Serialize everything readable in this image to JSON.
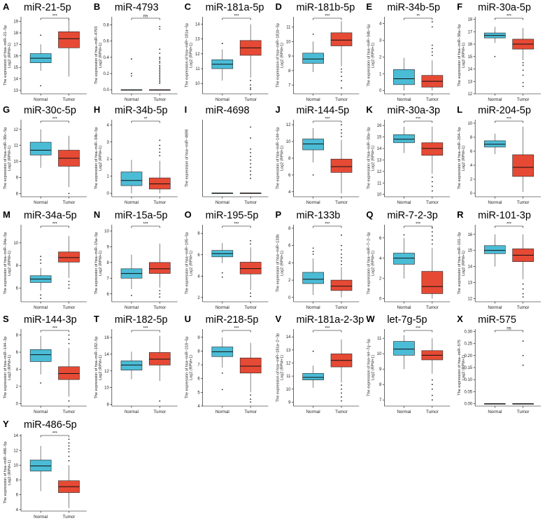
{
  "figure": {
    "x_categories": [
      "Normal",
      "Tumor"
    ],
    "colors": {
      "normal": "#4bbcd6",
      "tumor": "#e64a35"
    }
  },
  "chart_data": [
    {
      "type": "box",
      "letter": "A",
      "title": "miR-21-5p",
      "ylabel": "The expression of hsa−miR−21−5p",
      "ylabel2": "Log2 (RPM+1)",
      "yticks": [
        13,
        14,
        15,
        16,
        17,
        18,
        19
      ],
      "ylim": [
        12.7,
        19.4
      ],
      "sig": "***",
      "boxes": [
        {
          "q1": 15.4,
          "median": 15.8,
          "q3": 16.2,
          "whislo": 14.7,
          "whishi": 17.0,
          "outliers": [
            17.8,
            13.4
          ]
        },
        {
          "q1": 16.7,
          "median": 17.5,
          "q3": 18.1,
          "whislo": 14.2,
          "whishi": 19.2,
          "outliers": []
        }
      ]
    },
    {
      "type": "box",
      "letter": "B",
      "title": "miR-4793",
      "ylabel": "The expression of hsa−miR−4793",
      "ylabel2": "Log2 (RPM+1)",
      "yticks": [
        0.0,
        0.2,
        0.4,
        0.6,
        0.8
      ],
      "ylim": [
        -0.05,
        0.9
      ],
      "sig": "ns",
      "boxes": [
        {
          "q1": 0,
          "median": 0,
          "q3": 0,
          "whislo": 0,
          "whishi": 0,
          "outliers": [
            0.38,
            0.2,
            0.17
          ]
        },
        {
          "q1": 0,
          "median": 0,
          "q3": 0,
          "whislo": 0,
          "whishi": 0,
          "outliers": [
            0.78,
            0.75,
            0.5,
            0.45,
            0.4,
            0.38,
            0.35,
            0.33,
            0.3,
            0.28,
            0.26,
            0.24,
            0.22,
            0.2,
            0.18,
            0.16,
            0.14,
            0.12,
            0.1,
            0.08
          ]
        }
      ]
    },
    {
      "type": "box",
      "letter": "C",
      "title": "miR-181a-5p",
      "ylabel": "The expression of hsa−miR−181a−5p",
      "ylabel2": "Log2 (RPM+1)",
      "yticks": [
        10,
        11,
        12,
        13,
        14
      ],
      "ylim": [
        9.3,
        14.5
      ],
      "sig": "***",
      "boxes": [
        {
          "q1": 11.0,
          "median": 11.3,
          "q3": 11.6,
          "whislo": 10.2,
          "whishi": 12.3,
          "outliers": [
            12.7
          ]
        },
        {
          "q1": 11.9,
          "median": 12.4,
          "q3": 12.9,
          "whislo": 10.4,
          "whishi": 14.0,
          "outliers": [
            10.2,
            9.9,
            9.7,
            9.6
          ]
        }
      ]
    },
    {
      "type": "box",
      "letter": "D",
      "title": "miR-181b-5p",
      "ylabel": "The expression of hsa−miR−181b−5p",
      "ylabel2": "Log2 (RPM+1)",
      "yticks": [
        7,
        8,
        9,
        10,
        11
      ],
      "ylim": [
        6.4,
        11.7
      ],
      "sig": "***",
      "boxes": [
        {
          "q1": 8.5,
          "median": 8.8,
          "q3": 9.2,
          "whislo": 7.9,
          "whishi": 10.0,
          "outliers": [
            10.5
          ]
        },
        {
          "q1": 9.7,
          "median": 10.1,
          "q3": 10.6,
          "whislo": 8.3,
          "whishi": 11.4,
          "outliers": [
            8.1,
            7.9,
            7.6,
            7.3,
            6.8
          ]
        }
      ]
    },
    {
      "type": "box",
      "letter": "E",
      "title": "miR-34b-5p",
      "ylabel": "The expression of hsa−miR−34b−5p",
      "ylabel2": "Log2 (RPM+1)",
      "yticks": [
        0,
        1,
        2,
        3,
        4
      ],
      "ylim": [
        -0.2,
        4.4
      ],
      "sig": "**",
      "boxes": [
        {
          "q1": 0.35,
          "median": 0.7,
          "q3": 1.25,
          "whislo": 0,
          "whishi": 1.95,
          "outliers": []
        },
        {
          "q1": 0.2,
          "median": 0.55,
          "q3": 0.9,
          "whislo": 0,
          "whishi": 1.8,
          "outliers": [
            2.1,
            2.3,
            2.5,
            2.7,
            3.8,
            4.1
          ]
        }
      ]
    },
    {
      "type": "box",
      "letter": "F",
      "title": "miR-30a-5p",
      "ylabel": "The expression of hsa−miR−30a−5p",
      "ylabel2": "Log2 (RPM+1)",
      "yticks": [
        12,
        13,
        14,
        15,
        16,
        17,
        18
      ],
      "ylim": [
        12.0,
        18.2
      ],
      "sig": "***",
      "boxes": [
        {
          "q1": 16.5,
          "median": 16.7,
          "q3": 16.9,
          "whislo": 16.1,
          "whishi": 17.4,
          "outliers": [
            15.0
          ]
        },
        {
          "q1": 15.6,
          "median": 16.0,
          "q3": 16.4,
          "whislo": 14.7,
          "whishi": 17.3,
          "outliers": [
            14.5,
            14.3,
            13.9,
            13.5,
            12.9,
            12.6
          ]
        }
      ]
    },
    {
      "type": "box",
      "letter": "G",
      "title": "miR-30c-5p",
      "ylabel": "The expression of hsa−miR−30c−5p",
      "ylabel2": "Log2 (RPM+1)",
      "yticks": [
        8,
        9,
        10,
        11,
        12
      ],
      "ylim": [
        7.8,
        12.6
      ],
      "sig": "***",
      "boxes": [
        {
          "q1": 10.4,
          "median": 10.7,
          "q3": 11.2,
          "whislo": 9.6,
          "whishi": 12.0,
          "outliers": []
        },
        {
          "q1": 9.7,
          "median": 10.2,
          "q3": 10.7,
          "whislo": 8.4,
          "whishi": 11.6,
          "outliers": [
            8.0
          ]
        }
      ]
    },
    {
      "type": "box",
      "letter": "H",
      "title": "miR-34b-5p",
      "ylabel": "The expression of hsa−miR−34b−5p",
      "ylabel2": "Log2 (RPM+1)",
      "yticks": [
        0,
        1,
        2,
        3,
        4
      ],
      "ylim": [
        -0.2,
        4.3
      ],
      "sig": "**",
      "boxes": [
        {
          "q1": 0.45,
          "median": 0.75,
          "q3": 1.25,
          "whislo": 0,
          "whishi": 1.95,
          "outliers": []
        },
        {
          "q1": 0.25,
          "median": 0.55,
          "q3": 0.9,
          "whislo": 0,
          "whishi": 1.9,
          "outliers": [
            2.2,
            2.4,
            2.6,
            2.8,
            3.1
          ]
        }
      ]
    },
    {
      "type": "box",
      "letter": "I",
      "title": "miR-4698",
      "ylabel": "The expression of hsa−miR−4698",
      "ylabel2": "",
      "yticks": [],
      "ylim": [
        -0.05,
        1.0
      ],
      "sig": "",
      "boxes": [
        {
          "q1": 0,
          "median": 0,
          "q3": 0,
          "whislo": 0,
          "whishi": 0,
          "outliers": []
        },
        {
          "q1": 0,
          "median": 0,
          "q3": 0,
          "whislo": 0,
          "whishi": 0,
          "outliers": [
            0.9,
            0.75,
            0.6,
            0.55,
            0.5,
            0.45,
            0.4,
            0.35,
            0.3,
            0.25,
            0.2
          ]
        }
      ]
    },
    {
      "type": "box",
      "letter": "J",
      "title": "miR-144-5p",
      "ylabel": "The expression of hsa−miR−144−5p",
      "ylabel2": "Log2 (RPM+1)",
      "yticks": [
        4,
        6,
        8,
        10,
        12
      ],
      "ylim": [
        3.4,
        12.6
      ],
      "sig": "***",
      "boxes": [
        {
          "q1": 9.0,
          "median": 9.7,
          "q3": 10.3,
          "whislo": 7.5,
          "whishi": 11.6,
          "outliers": [
            6.0
          ]
        },
        {
          "q1": 6.3,
          "median": 7.0,
          "q3": 7.9,
          "whislo": 3.8,
          "whishi": 10.2,
          "outliers": [
            10.6,
            11.0,
            11.4,
            12.0
          ]
        }
      ]
    },
    {
      "type": "box",
      "letter": "K",
      "title": "miR-30a-3p",
      "ylabel": "The expression of hsa−miR−30a−3p",
      "ylabel2": "Log2 (RPM+1)",
      "yticks": [
        10,
        11,
        12,
        13,
        14,
        15,
        16
      ],
      "ylim": [
        9.8,
        16.5
      ],
      "sig": "***",
      "boxes": [
        {
          "q1": 14.5,
          "median": 14.8,
          "q3": 15.2,
          "whislo": 13.6,
          "whishi": 15.9,
          "outliers": []
        },
        {
          "q1": 13.4,
          "median": 14.0,
          "q3": 14.5,
          "whislo": 11.8,
          "whishi": 15.9,
          "outliers": [
            11.5,
            11.1,
            10.7,
            10.3
          ]
        }
      ]
    },
    {
      "type": "box",
      "letter": "L",
      "title": "miR-204-5p",
      "ylabel": "The expression of hsa−miR−204−5p",
      "ylabel2": "Log2 (RPM+1)",
      "yticks": [
        0,
        2,
        4,
        6,
        8,
        10
      ],
      "ylim": [
        -0.5,
        10.5
      ],
      "sig": "***",
      "boxes": [
        {
          "q1": 6.6,
          "median": 7.0,
          "q3": 7.5,
          "whislo": 5.6,
          "whishi": 8.5,
          "outliers": []
        },
        {
          "q1": 2.4,
          "median": 3.7,
          "q3": 5.5,
          "whislo": 0.2,
          "whishi": 9.5,
          "outliers": []
        }
      ]
    },
    {
      "type": "box",
      "letter": "M",
      "title": "miR-34a-5p",
      "ylabel": "The expression of hsa−miR−34a−5p",
      "ylabel2": "Log2 (RPM+1)",
      "yticks": [
        6,
        8,
        10
      ],
      "ylim": [
        4.8,
        11.6
      ],
      "sig": "***",
      "boxes": [
        {
          "q1": 6.5,
          "median": 6.8,
          "q3": 7.1,
          "whislo": 5.8,
          "whishi": 7.8,
          "outliers": [
            8.2,
            8.5,
            8.8,
            5.4,
            5.1
          ]
        },
        {
          "q1": 8.3,
          "median": 8.7,
          "q3": 9.2,
          "whislo": 6.9,
          "whishi": 10.6,
          "outliers": [
            6.6,
            6.3,
            6.0
          ]
        }
      ]
    },
    {
      "type": "box",
      "letter": "N",
      "title": "miR-15a-5p",
      "ylabel": "The expression of hsa−miR−15a−5p",
      "ylabel2": "Log2 (RPM+1)",
      "yticks": [
        6,
        7,
        8,
        9,
        10
      ],
      "ylim": [
        5.5,
        10.4
      ],
      "sig": "***",
      "boxes": [
        {
          "q1": 7.0,
          "median": 7.3,
          "q3": 7.6,
          "whislo": 6.3,
          "whishi": 8.5,
          "outliers": [
            5.9
          ]
        },
        {
          "q1": 7.3,
          "median": 7.6,
          "q3": 8.0,
          "whislo": 6.4,
          "whishi": 9.2,
          "outliers": [
            6.2,
            6.0,
            5.8
          ]
        }
      ]
    },
    {
      "type": "box",
      "letter": "O",
      "title": "miR-195-5p",
      "ylabel": "The expression of hsa−miR−195−5p",
      "ylabel2": "Log2 (RPM+1)",
      "yticks": [
        2,
        4,
        6,
        8
      ],
      "ylim": [
        1.6,
        8.8
      ],
      "sig": "***",
      "boxes": [
        {
          "q1": 5.8,
          "median": 6.1,
          "q3": 6.4,
          "whislo": 5.2,
          "whishi": 7.1,
          "outliers": [
            4.3,
            3.9
          ]
        },
        {
          "q1": 4.2,
          "median": 4.7,
          "q3": 5.3,
          "whislo": 2.7,
          "whishi": 6.7,
          "outliers": [
            7.0,
            7.3,
            2.4,
            2.1
          ]
        }
      ]
    },
    {
      "type": "box",
      "letter": "P",
      "title": "miR-133b",
      "ylabel": "The expression of hsa−miR−133b",
      "ylabel2": "Log2 (RPM+1)",
      "yticks": [
        0,
        2,
        4,
        6,
        8
      ],
      "ylim": [
        -0.5,
        8.4
      ],
      "sig": "***",
      "boxes": [
        {
          "q1": 1.6,
          "median": 2.1,
          "q3": 2.9,
          "whislo": 0.3,
          "whishi": 4.5,
          "outliers": [
            5.0,
            5.3,
            5.7
          ]
        },
        {
          "q1": 0.8,
          "median": 1.3,
          "q3": 2.0,
          "whislo": 0.0,
          "whishi": 3.5,
          "outliers": [
            3.8,
            4.2,
            4.6,
            5.0,
            5.5,
            6.0,
            7.2
          ]
        }
      ]
    },
    {
      "type": "box",
      "letter": "Q",
      "title": "miR-7-2-3p",
      "ylabel": "The expression of hsa−miR−7−2−3p",
      "ylabel2": "Log2 (RPM+1)",
      "yticks": [
        0,
        2,
        4,
        6
      ],
      "ylim": [
        -0.3,
        7.3
      ],
      "sig": "***",
      "boxes": [
        {
          "q1": 3.4,
          "median": 4.0,
          "q3": 4.5,
          "whislo": 2.0,
          "whishi": 6.0,
          "outliers": [
            6.3
          ]
        },
        {
          "q1": 0.5,
          "median": 1.2,
          "q3": 2.7,
          "whislo": 0,
          "whishi": 5.0,
          "outliers": [
            5.4,
            5.8,
            6.2,
            6.6,
            7.0
          ]
        }
      ]
    },
    {
      "type": "box",
      "letter": "R",
      "title": "miR-101-3p",
      "ylabel": "The expression of hsa−miR−101−3p",
      "ylabel2": "Log2 (RPM+1)",
      "yticks": [
        12,
        13,
        14,
        15,
        16
      ],
      "ylim": [
        11.8,
        16.6
      ],
      "sig": "***",
      "boxes": [
        {
          "q1": 14.8,
          "median": 15.0,
          "q3": 15.3,
          "whislo": 14.0,
          "whishi": 16.0,
          "outliers": []
        },
        {
          "q1": 14.3,
          "median": 14.7,
          "q3": 15.1,
          "whislo": 13.2,
          "whishi": 16.0,
          "outliers": [
            12.9,
            12.6,
            12.3,
            12.1
          ]
        }
      ]
    },
    {
      "type": "box",
      "letter": "S",
      "title": "miR-144-3p",
      "ylabel": "The expression of hsa−miR−144−3p",
      "ylabel2": "Log2 (RPM+1)",
      "yticks": [
        0,
        2,
        4,
        6,
        8
      ],
      "ylim": [
        -0.3,
        8.7
      ],
      "sig": "***",
      "boxes": [
        {
          "q1": 4.9,
          "median": 5.7,
          "q3": 6.3,
          "whislo": 3.4,
          "whishi": 7.9,
          "outliers": [
            2.4
          ]
        },
        {
          "q1": 2.8,
          "median": 3.5,
          "q3": 4.3,
          "whislo": 0.8,
          "whishi": 6.5,
          "outliers": [
            7.0,
            7.5,
            8.0,
            0.3
          ]
        }
      ]
    },
    {
      "type": "box",
      "letter": "T",
      "title": "miR-182-5p",
      "ylabel": "The expression of hsa−miR−182−5p",
      "ylabel2": "Log2 (RPM+1)",
      "yticks": [
        8,
        10,
        12,
        14,
        16
      ],
      "ylim": [
        7.8,
        17.0
      ],
      "sig": "***",
      "boxes": [
        {
          "q1": 12.1,
          "median": 12.7,
          "q3": 13.2,
          "whislo": 11.0,
          "whishi": 14.3,
          "outliers": []
        },
        {
          "q1": 12.7,
          "median": 13.4,
          "q3": 14.2,
          "whislo": 10.8,
          "whishi": 16.2,
          "outliers": [
            8.4
          ]
        }
      ]
    },
    {
      "type": "box",
      "letter": "U",
      "title": "miR-218-5p",
      "ylabel": "The expression of hsa−miR−218−5p",
      "ylabel2": "Log2 (RPM+1)",
      "yticks": [
        4,
        5,
        6,
        7,
        8,
        9
      ],
      "ylim": [
        4.0,
        9.6
      ],
      "sig": "***",
      "boxes": [
        {
          "q1": 7.6,
          "median": 7.95,
          "q3": 8.3,
          "whislo": 6.8,
          "whishi": 9.0,
          "outliers": [
            6.4,
            5.2
          ]
        },
        {
          "q1": 6.4,
          "median": 6.9,
          "q3": 7.5,
          "whislo": 5.0,
          "whishi": 8.6,
          "outliers": [
            4.8,
            4.5,
            4.3
          ]
        }
      ]
    },
    {
      "type": "box",
      "letter": "V",
      "title": "miR-181a-2-3p",
      "ylabel": "The expression of hsa−miR−181a−2−3p",
      "ylabel2": "Log2 (RPM+1)",
      "yticks": [
        9,
        10,
        11,
        12,
        13,
        14
      ],
      "ylim": [
        8.7,
        14.6
      ],
      "sig": "***",
      "boxes": [
        {
          "q1": 10.7,
          "median": 10.9,
          "q3": 11.2,
          "whislo": 10.1,
          "whishi": 11.8,
          "outliers": [
            12.9
          ]
        },
        {
          "q1": 11.7,
          "median": 12.2,
          "q3": 12.7,
          "whislo": 10.5,
          "whishi": 13.8,
          "outliers": [
            10.3,
            10.0,
            9.7,
            9.4,
            9.1
          ]
        }
      ]
    },
    {
      "type": "box",
      "letter": "W",
      "title": "let-7g-5p",
      "ylabel": "The expression of hsa−let−7g−5p",
      "ylabel2": "Log2 (RPM+1)",
      "yticks": [
        7,
        8,
        9,
        10,
        11
      ],
      "ylim": [
        6.6,
        11.6
      ],
      "sig": "***",
      "boxes": [
        {
          "q1": 9.9,
          "median": 10.3,
          "q3": 10.8,
          "whislo": 9.0,
          "whishi": 11.2,
          "outliers": []
        },
        {
          "q1": 9.6,
          "median": 9.9,
          "q3": 10.2,
          "whislo": 8.7,
          "whishi": 11.0,
          "outliers": [
            8.3,
            8.0,
            7.7,
            7.3,
            7.0
          ]
        }
      ]
    },
    {
      "type": "box",
      "letter": "X",
      "title": "miR-575",
      "ylabel": "The expression of hsa−miR−575",
      "ylabel2": "Log2 (RPM+1)",
      "yticks": [
        0.0,
        0.05,
        0.1,
        0.15,
        0.2,
        0.25,
        0.3
      ],
      "ylim": [
        -0.01,
        0.31
      ],
      "sig": "ns",
      "boxes": [
        {
          "q1": 0,
          "median": 0,
          "q3": 0,
          "whislo": 0,
          "whishi": 0,
          "outliers": []
        },
        {
          "q1": 0,
          "median": 0,
          "q3": 0,
          "whislo": 0,
          "whishi": 0,
          "outliers": [
            0.26,
            0.2,
            0.16
          ]
        }
      ]
    },
    {
      "type": "box",
      "letter": "Y",
      "title": "miR-486-5p",
      "ylabel": "The expression of hsa−miR−486−5p",
      "ylabel2": "Log2 (RPM+1)",
      "yticks": [
        4,
        6,
        8,
        10,
        12,
        14
      ],
      "ylim": [
        3.8,
        14.2
      ],
      "sig": "***",
      "boxes": [
        {
          "q1": 9.2,
          "median": 9.9,
          "q3": 10.7,
          "whislo": 6.5,
          "whishi": 12.6,
          "outliers": []
        },
        {
          "q1": 6.3,
          "median": 7.1,
          "q3": 7.9,
          "whislo": 4.2,
          "whishi": 10.0,
          "outliers": [
            10.6,
            11.2,
            11.8,
            12.2,
            12.6,
            13.0,
            13.5
          ]
        }
      ]
    }
  ]
}
